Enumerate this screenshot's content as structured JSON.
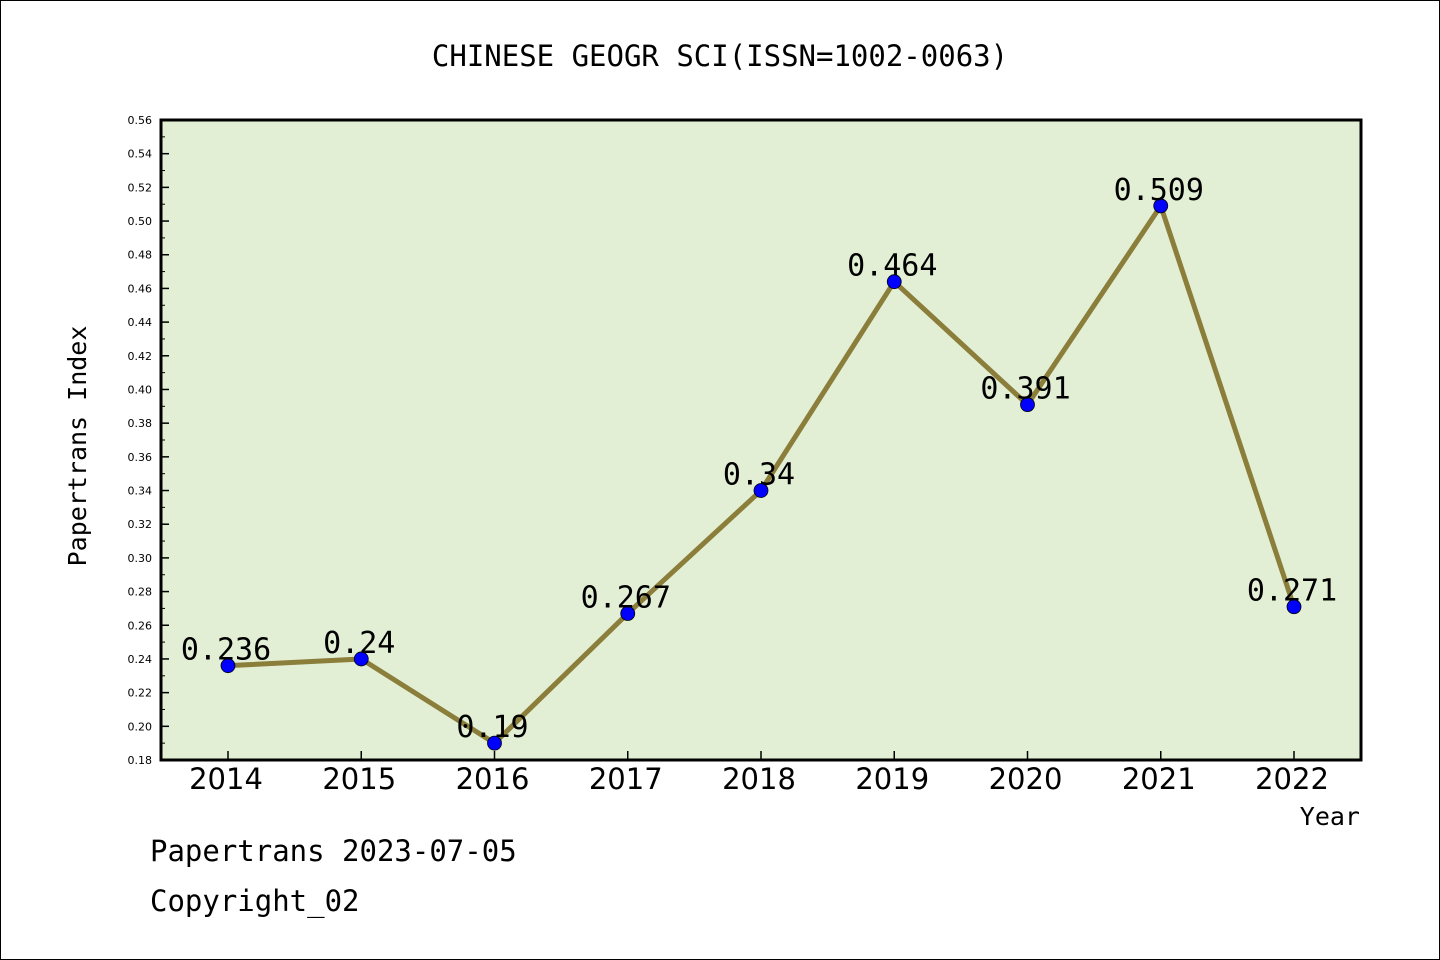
{
  "chart_data": {
    "type": "line",
    "title": "CHINESE GEOGR SCI(ISSN=1002-0063)",
    "xlabel": "Year",
    "ylabel": "Papertrans Index",
    "categories": [
      "2014",
      "2015",
      "2016",
      "2017",
      "2018",
      "2019",
      "2020",
      "2021",
      "2022"
    ],
    "values": [
      0.236,
      0.24,
      0.19,
      0.267,
      0.34,
      0.464,
      0.391,
      0.509,
      0.271
    ],
    "value_labels": [
      "0.236",
      "0.24",
      "0.19",
      "0.267",
      "0.34",
      "0.464",
      "0.391",
      "0.509",
      "0.271"
    ],
    "ylim": [
      0.18,
      0.56
    ],
    "ytick_labels": [
      "0.18",
      "0.20",
      "0.22",
      "0.24",
      "0.26",
      "0.28",
      "0.30",
      "0.32",
      "0.34",
      "0.36",
      "0.38",
      "0.40",
      "0.42",
      "0.44",
      "0.46",
      "0.48",
      "0.50",
      "0.52",
      "0.54",
      "0.56"
    ],
    "grid": false,
    "colors": {
      "plot_background": "#e2efd5",
      "line": "#8b7d3a",
      "marker": "#0000ff"
    }
  },
  "footer": {
    "source": "Papertrans 2023-07-05",
    "copyright": "Copyright_02"
  }
}
